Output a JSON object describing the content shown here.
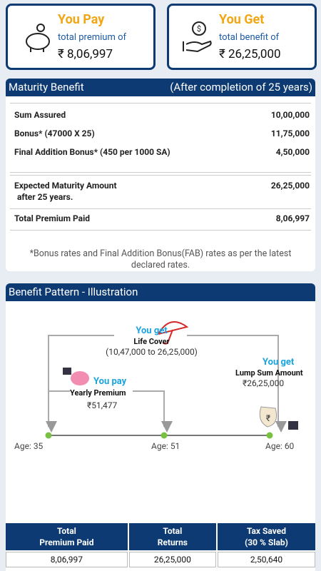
{
  "cards": [
    {
      "title": "You Pay",
      "subtitle": "total premium of",
      "amount": "₹ 8,06,997"
    },
    {
      "title": "You Get",
      "subtitle": "total benefit of",
      "amount": "₹ 26,25,000"
    }
  ],
  "maturity": {
    "title": "Maturity Benefit",
    "note": "(After completion of 25 years)",
    "rows": [
      [
        "Sum Assured",
        "10,00,000"
      ],
      [
        "Bonus* (47000 X 25)",
        "11,75,000"
      ],
      [
        "Final Addition Bonus* (450 per 1000 SA)",
        "4,50,000"
      ]
    ],
    "expected": {
      "label": "Expected Maturity Amount",
      "sub": "after 25 years.",
      "value": "26,25,000"
    },
    "total": [
      "Total Premium Paid",
      "8,06,997"
    ],
    "footnote": "*Bonus rates and Final Addition Bonus(FAB) rates as per the latest declared rates."
  },
  "illustration": {
    "title": "Benefit Pattern - Illustration",
    "life_cover": {
      "tag": "You get",
      "label": "Life Cover",
      "range": "(10,47,000 to 26,25,000)"
    },
    "premium": {
      "tag": "You pay",
      "label": "Yearly Premium",
      "amount": "₹51,477"
    },
    "lump_sum": {
      "tag": "You get",
      "label": "Lump Sum Amount",
      "amount": "₹26,25,000"
    },
    "ages": [
      "Age: 35",
      "Age: 51",
      "Age: 60"
    ]
  },
  "summary": {
    "headers": [
      [
        "Total",
        "Premium Paid"
      ],
      [
        "Total",
        "Returns"
      ],
      [
        "Tax Saved",
        "(30 % Slab)"
      ]
    ],
    "values": [
      "8,06,997",
      "26,25,000",
      "2,50,640"
    ]
  }
}
